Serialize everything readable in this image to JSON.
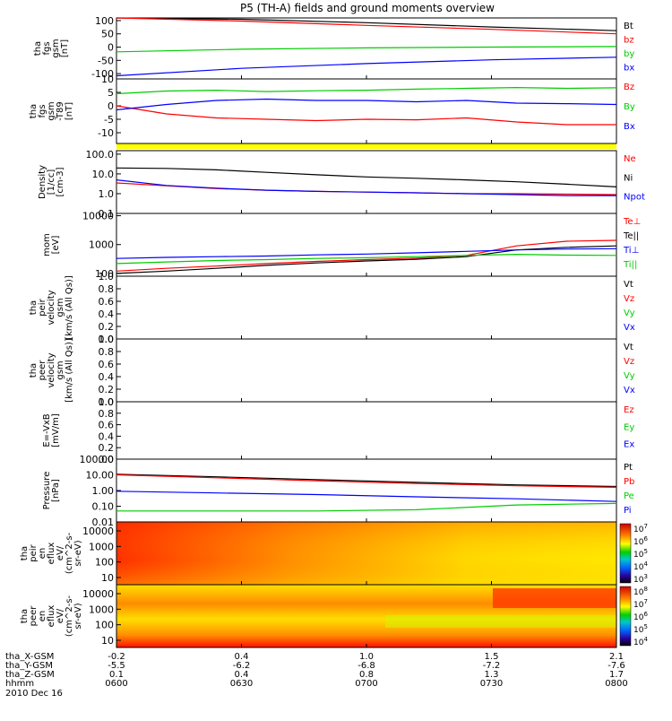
{
  "title": "P5 (TH-A) fields and ground moments overview",
  "date_label": "2010 Dec 16",
  "bottom_axis": {
    "row_labels": [
      "tha_X-GSM",
      "tha_Y-GSM",
      "tha_Z-GSM",
      "hhmm"
    ],
    "columns": [
      [
        "-0.2",
        "-5.5",
        "0.1",
        "0600"
      ],
      [
        "0.4",
        "-6.2",
        "0.4",
        "0630"
      ],
      [
        "1.0",
        "-6.8",
        "0.8",
        "0700"
      ],
      [
        "1.5",
        "-7.2",
        "1.3",
        "0730"
      ],
      [
        "2.1",
        "-7.6",
        "1.7",
        "0800"
      ]
    ]
  },
  "chart_data": [
    {
      "type": "line",
      "ylabel": [
        "tha",
        "fgs",
        "gsm",
        "[nT]"
      ],
      "yticks": [
        "100",
        "50",
        "0",
        "-50",
        "-100"
      ],
      "ylim": [
        -120,
        110
      ],
      "x": [
        0,
        0.25,
        0.5,
        0.75,
        1.0
      ],
      "series": [
        {
          "name": "Bt",
          "color": "#000000",
          "values": [
            110,
            105,
            92,
            76,
            62
          ]
        },
        {
          "name": "bz",
          "color": "#ff0000",
          "values": [
            115,
            98,
            82,
            67,
            50
          ]
        },
        {
          "name": "by",
          "color": "#00cc00",
          "values": [
            -18,
            -8,
            -3,
            0,
            2
          ]
        },
        {
          "name": "bx",
          "color": "#0000ff",
          "values": [
            -108,
            -80,
            -62,
            -48,
            -38
          ]
        }
      ]
    },
    {
      "type": "line",
      "ylabel": [
        "tha",
        "fgs",
        "gsm",
        "-T89",
        "[nT]"
      ],
      "yticks": [
        "10",
        "5",
        "0",
        "-5",
        "-10"
      ],
      "ylim": [
        -14,
        10
      ],
      "x": [
        0,
        0.1,
        0.2,
        0.3,
        0.4,
        0.5,
        0.6,
        0.7,
        0.8,
        0.9,
        1.0
      ],
      "series": [
        {
          "name": "Bz",
          "color": "#ff0000",
          "values": [
            0,
            -3,
            -4.5,
            -5,
            -5.5,
            -5,
            -5.2,
            -4.5,
            -6,
            -7,
            -7
          ]
        },
        {
          "name": "By",
          "color": "#00cc00",
          "values": [
            4.5,
            5.5,
            5.8,
            5.3,
            5.6,
            5.8,
            6.2,
            6.5,
            6.8,
            6.5,
            6.7
          ]
        },
        {
          "name": "Bx",
          "color": "#0000ff",
          "values": [
            -1.5,
            0.5,
            2,
            2.5,
            2,
            2,
            1.5,
            2,
            1,
            0.8,
            0.5
          ]
        }
      ]
    },
    {
      "type": "line",
      "ylabel": [
        "Density",
        "[1/cc]",
        "[cm-3]"
      ],
      "yscale": "log",
      "yticks": [
        "100.0",
        "10.0",
        "1.0",
        "0.1"
      ],
      "ylim": [
        0.1,
        150
      ],
      "x": [
        0,
        0.1,
        0.2,
        0.3,
        0.4,
        0.5,
        0.6,
        0.7,
        0.8,
        0.9,
        1.0
      ],
      "series": [
        {
          "name": "Ne",
          "color": "#ff0000",
          "values": [
            3.5,
            2.5,
            1.8,
            1.5,
            1.3,
            1.2,
            1.1,
            1.0,
            1.0,
            0.95,
            0.9
          ]
        },
        {
          "name": "Ni",
          "color": "#000000",
          "values": [
            20,
            19,
            16,
            12,
            9,
            7,
            6,
            5,
            4,
            3,
            2.2
          ]
        },
        {
          "name": "Npot",
          "color": "#0000ff",
          "values": [
            5,
            2.6,
            1.9,
            1.5,
            1.3,
            1.2,
            1.1,
            1.0,
            0.9,
            0.8,
            0.8
          ]
        }
      ]
    },
    {
      "type": "line",
      "ylabel": [
        "mom",
        "[eV]"
      ],
      "yscale": "log",
      "yticks": [
        "10000",
        "1000",
        "100"
      ],
      "ylim": [
        80,
        12000
      ],
      "x": [
        0,
        0.1,
        0.2,
        0.3,
        0.4,
        0.5,
        0.6,
        0.7,
        0.8,
        0.9,
        1.0
      ],
      "series": [
        {
          "name": "Te⊥",
          "color": "#ff0000",
          "values": [
            120,
            150,
            180,
            220,
            260,
            300,
            340,
            420,
            900,
            1300,
            1400
          ]
        },
        {
          "name": "Te||",
          "color": "#000000",
          "values": [
            100,
            120,
            150,
            190,
            230,
            270,
            310,
            380,
            650,
            800,
            900
          ]
        },
        {
          "name": "Ti⊥",
          "color": "#0000ff",
          "values": [
            330,
            360,
            380,
            400,
            440,
            470,
            520,
            580,
            650,
            700,
            720
          ]
        },
        {
          "name": "Ti||",
          "color": "#00cc00",
          "values": [
            220,
            250,
            280,
            300,
            330,
            350,
            380,
            420,
            460,
            430,
            420
          ]
        }
      ]
    },
    {
      "type": "line",
      "ylabel": [
        "tha",
        "peir",
        "velocity",
        "gsm",
        "[km/s (All Qs)]"
      ],
      "yticks": [
        "1.0",
        "0.8",
        "0.6",
        "0.4",
        "0.2",
        "0.0"
      ],
      "ylim": [
        0,
        1
      ],
      "legend": [
        {
          "name": "Vt",
          "color": "#000000"
        },
        {
          "name": "Vz",
          "color": "#ff0000"
        },
        {
          "name": "Vy",
          "color": "#00cc00"
        },
        {
          "name": "Vx",
          "color": "#0000ff"
        }
      ]
    },
    {
      "type": "line",
      "ylabel": [
        "tha",
        "peer",
        "velocity",
        "gsm",
        "[km/s (All Qs)]"
      ],
      "yticks": [
        "1.0",
        "0.8",
        "0.6",
        "0.4",
        "0.2",
        "0.0"
      ],
      "ylim": [
        0,
        1
      ],
      "legend": [
        {
          "name": "Vt",
          "color": "#000000"
        },
        {
          "name": "Vz",
          "color": "#ff0000"
        },
        {
          "name": "Vy",
          "color": "#00cc00"
        },
        {
          "name": "Vx",
          "color": "#0000ff"
        }
      ]
    },
    {
      "type": "line",
      "ylabel": [
        "E=-VxB",
        "[mV/m]"
      ],
      "yticks": [
        "1.0",
        "0.8",
        "0.6",
        "0.4",
        "0.2",
        "0.0"
      ],
      "ylim": [
        0,
        1
      ],
      "legend": [
        {
          "name": "Ez",
          "color": "#ff0000"
        },
        {
          "name": "Ey",
          "color": "#00cc00"
        },
        {
          "name": "Ex",
          "color": "#0000ff"
        }
      ]
    },
    {
      "type": "line",
      "ylabel": [
        "Pressure",
        "[nPa]"
      ],
      "yscale": "log",
      "yticks": [
        "100.00",
        "10.00",
        "1.00",
        "0.10",
        "0.01"
      ],
      "ylim": [
        0.01,
        100
      ],
      "x": [
        0,
        0.2,
        0.4,
        0.6,
        0.8,
        1.0
      ],
      "series": [
        {
          "name": "Pt",
          "color": "#000000",
          "values": [
            11,
            7.5,
            5,
            3.3,
            2.3,
            1.8
          ]
        },
        {
          "name": "Pb",
          "color": "#ff0000",
          "values": [
            10,
            6.5,
            4.2,
            2.8,
            2.0,
            1.6
          ]
        },
        {
          "name": "Pe",
          "color": "#00cc00",
          "values": [
            0.05,
            0.05,
            0.05,
            0.06,
            0.12,
            0.15
          ]
        },
        {
          "name": "Pi",
          "color": "#0000ff",
          "values": [
            0.9,
            0.7,
            0.55,
            0.4,
            0.3,
            0.2
          ]
        }
      ]
    },
    {
      "type": "heatmap",
      "ylabel": [
        "tha",
        "peir",
        "en",
        "eflux",
        "eV/",
        "(cm^2-s-",
        "sr-eV)"
      ],
      "yticks": [
        "10000",
        "1000",
        "100",
        "10"
      ],
      "colorbar_ticks": [
        "10^7",
        "10^6",
        "10^5",
        "10^4",
        "10^3"
      ]
    },
    {
      "type": "heatmap",
      "ylabel": [
        "tha",
        "peer",
        "en",
        "eflux",
        "eV/",
        "(cm^2-s-",
        "sr-eV)"
      ],
      "yticks": [
        "10000",
        "1000",
        "100",
        "10"
      ],
      "colorbar_ticks": [
        "10^8",
        "10^7",
        "10^6",
        "10^5",
        "10^4"
      ]
    }
  ]
}
